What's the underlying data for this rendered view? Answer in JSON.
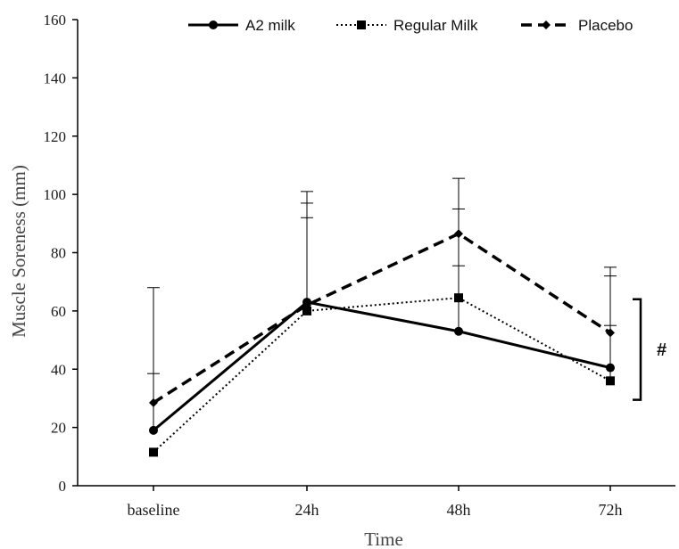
{
  "chart_data": {
    "type": "line",
    "title": "",
    "xlabel": "Time",
    "ylabel": "Muscle Soreness (mm)",
    "categories": [
      "baseline",
      "24h",
      "48h",
      "72h"
    ],
    "ylim": [
      0,
      160
    ],
    "yticks": [
      0,
      20,
      40,
      60,
      80,
      100,
      120,
      140,
      160
    ],
    "grid": false,
    "legend_position": "top",
    "series": [
      {
        "name": "A2 milk",
        "style": "solid",
        "marker": "circle",
        "color": "#000000",
        "values": [
          19,
          63,
          53,
          40.5
        ],
        "error_upper": [
          38.5,
          92,
          75.5,
          55
        ]
      },
      {
        "name": "Regular Milk",
        "style": "dotted",
        "marker": "square",
        "color": "#000000",
        "values": [
          11.5,
          60,
          64.5,
          36
        ],
        "error_upper": [
          null,
          97,
          95,
          72
        ]
      },
      {
        "name": "Placebo",
        "style": "dashed",
        "marker": "diamond",
        "color": "#000000",
        "values": [
          28.5,
          62,
          86.5,
          52.5
        ],
        "error_upper": [
          68,
          101,
          105.5,
          75
        ]
      }
    ],
    "annotation": {
      "text": "#",
      "bracket_range": [
        29.5,
        64
      ]
    }
  }
}
